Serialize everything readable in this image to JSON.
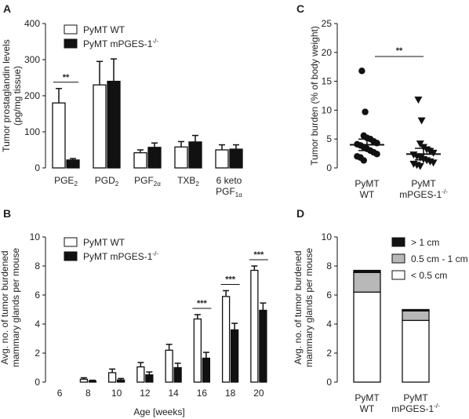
{
  "colors": {
    "wt": "#ffffff",
    "ko": "#111111",
    "gray": "#b8b8b8",
    "stroke": "#111111"
  },
  "panels": {
    "A": "A",
    "B": "B",
    "C": "C",
    "D": "D"
  },
  "chart_data": [
    {
      "id": "A",
      "type": "bar",
      "ylabel": "Tumor prostaglandin levels (pg/mg tissue)",
      "ylabel_lines": [
        "Tumor prostaglandin levels",
        "(pg/mg tissue)"
      ],
      "ylim": [
        0,
        400
      ],
      "yticks": [
        "0",
        "100",
        "200",
        "300",
        "400"
      ],
      "categories": [
        {
          "main": "PGE",
          "sub": "2"
        },
        {
          "main": "PGD",
          "sub": "2"
        },
        {
          "main": "PGF",
          "sub": "2α"
        },
        {
          "main": "TXB",
          "sub": "2"
        },
        {
          "main": "6 keto",
          "main2": "PGF",
          "sub": "1α"
        }
      ],
      "series": [
        {
          "name": "PyMT WT",
          "values": [
            180,
            230,
            42,
            58,
            50
          ],
          "errors": [
            40,
            65,
            8,
            15,
            14
          ]
        },
        {
          "name": "PyMT mPGES-1",
          "name_sup": "-/-",
          "values": [
            22,
            240,
            57,
            72,
            52
          ],
          "errors": [
            4,
            62,
            12,
            18,
            12
          ]
        }
      ],
      "significance": [
        {
          "category_index": 0,
          "label": "**"
        }
      ],
      "legend": "top-left"
    },
    {
      "id": "B",
      "type": "bar",
      "xlabel": "Age [weeks]",
      "ylabel_lines": [
        "Avg. no. of tumor burdened",
        "mammary glands per mouse"
      ],
      "ylim": [
        0,
        10
      ],
      "yticks": [
        "0",
        "2",
        "4",
        "6",
        "8",
        "10"
      ],
      "categories": [
        "6",
        "8",
        "10",
        "12",
        "14",
        "16",
        "18",
        "20"
      ],
      "series": [
        {
          "name": "PyMT WT",
          "values": [
            0,
            0.2,
            0.65,
            1.05,
            2.2,
            4.35,
            5.9,
            7.7
          ],
          "errors": [
            0,
            0.1,
            0.25,
            0.3,
            0.4,
            0.3,
            0.4,
            0.3
          ]
        },
        {
          "name": "PyMT mPGES-1",
          "name_sup": "-/-",
          "values": [
            0,
            0.08,
            0.15,
            0.5,
            1.0,
            1.65,
            3.6,
            4.95
          ],
          "errors": [
            0,
            0.05,
            0.1,
            0.2,
            0.3,
            0.4,
            0.45,
            0.5
          ]
        }
      ],
      "significance": [
        {
          "category_index": 5,
          "label": "***"
        },
        {
          "category_index": 6,
          "label": "***"
        },
        {
          "category_index": 7,
          "label": "***"
        }
      ],
      "legend": "top-left"
    },
    {
      "id": "C",
      "type": "scatter",
      "ylabel": "Tumor burden (% of body weight)",
      "ylim": [
        0,
        25
      ],
      "yticks": [
        "0",
        "5",
        "10",
        "15",
        "20",
        "25"
      ],
      "groups": [
        {
          "label": "PyMT",
          "label2": "WT",
          "marker": "circle",
          "mean": 4.0,
          "sem": 1.0,
          "points": [
            16.8,
            9.7,
            5.6,
            5.2,
            5.0,
            4.6,
            4.3,
            4.1,
            3.9,
            3.6,
            3.3,
            3.0,
            2.7,
            2.4,
            2.0,
            1.8,
            1.3
          ]
        },
        {
          "label": "PyMT",
          "label2": "mPGES-1",
          "label2_sup": "-/-",
          "marker": "triangle",
          "mean": 2.4,
          "sem": 1.0,
          "points": [
            11.8,
            8.2,
            4.2,
            3.6,
            3.2,
            2.9,
            2.6,
            2.3,
            2.0,
            1.8,
            1.5,
            1.3,
            1.1,
            0.9,
            0.7,
            0.5,
            0.3
          ]
        }
      ],
      "significance": [
        {
          "label": "**"
        }
      ]
    },
    {
      "id": "D",
      "type": "bar",
      "stacked": true,
      "ylabel_lines": [
        "Avg. no. of tumor burdened",
        "mammary glands per mouse"
      ],
      "ylim": [
        0,
        10
      ],
      "yticks": [
        "0",
        "2",
        "4",
        "6",
        "8",
        "10"
      ],
      "categories": [
        {
          "main": "PyMT",
          "main2": "WT"
        },
        {
          "main": "PyMT",
          "main2": "mPGES-1",
          "sup": "-/-"
        }
      ],
      "series": [
        {
          "name": "< 0.5 cm",
          "values": [
            6.2,
            4.25
          ],
          "color": "#ffffff"
        },
        {
          "name": "0.5 cm - 1 cm",
          "values": [
            1.35,
            0.65
          ],
          "color": "#b8b8b8"
        },
        {
          "name": "> 1 cm",
          "values": [
            0.15,
            0.1
          ],
          "color": "#111111"
        }
      ],
      "legend_order": [
        "> 1 cm",
        "0.5 cm - 1 cm",
        "< 0.5 cm"
      ],
      "legend": "top-right"
    }
  ]
}
